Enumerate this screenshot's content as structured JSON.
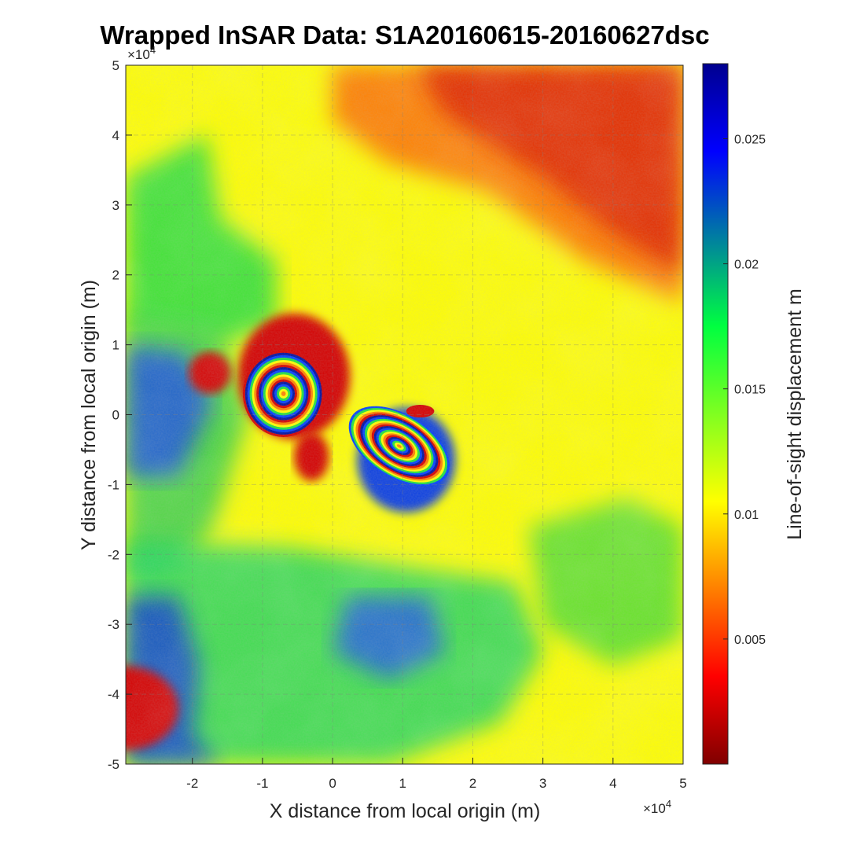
{
  "chart_data": {
    "type": "heatmap",
    "title": "Wrapped InSAR Data: S1A20160615-20160627dsc",
    "xlabel": "X distance from local origin (m)",
    "ylabel": "Y distance from local origin (m)",
    "x_exponent": "×10",
    "x_exponent_power": "4",
    "y_exponent": "×10",
    "y_exponent_power": "4",
    "xlim": [
      -2.95,
      5
    ],
    "ylim": [
      -5,
      5
    ],
    "x_ticks": [
      -2,
      -1,
      0,
      1,
      2,
      3,
      4,
      5
    ],
    "x_tick_labels": [
      "-2",
      "-1",
      "0",
      "1",
      "2",
      "3",
      "4",
      "5"
    ],
    "y_ticks": [
      5,
      4,
      3,
      2,
      1,
      0,
      -1,
      -2,
      -3,
      -4,
      -5
    ],
    "y_tick_labels": [
      "5",
      "4",
      "3",
      "2",
      "1",
      "0",
      "-1",
      "-2",
      "-3",
      "-4",
      "-5"
    ],
    "grid": true,
    "colorbar": {
      "label": "Line-of-sight displacement m",
      "range": [
        0,
        0.028
      ],
      "ticks": [
        0.005,
        0.01,
        0.015,
        0.02,
        0.025
      ],
      "tick_labels": [
        "0.005",
        "0.01",
        "0.015",
        "0.02",
        "0.025"
      ],
      "colormap": "jet (reversed)"
    },
    "fringe_centers": [
      {
        "name": "northwest lobe",
        "x": -0.7,
        "y": 0.3,
        "shape": "concentric circular rings"
      },
      {
        "name": "southeast lobe",
        "x": 0.95,
        "y": -0.45,
        "shape": "concentric elongated ellipses"
      }
    ]
  },
  "colors": {
    "wrap_low": "#d40000",
    "wrap_mid": "#ffff00",
    "wrap_high": "#0010c0",
    "background": "#ffffff",
    "text": "#262626"
  }
}
